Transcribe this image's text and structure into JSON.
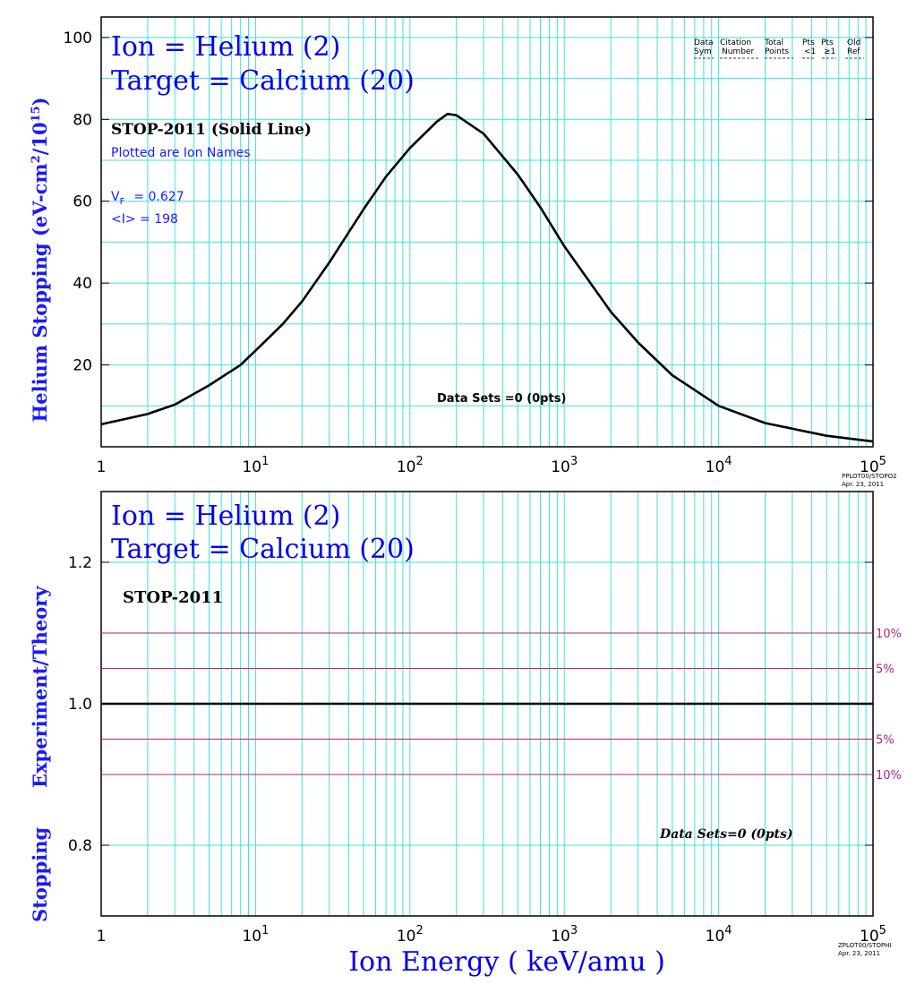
{
  "top_panel": {
    "title_ion": "Ion = Helium (2)",
    "title_target": "Target = Calcium (20)",
    "model_label": "STOP-2011 (Solid Line)",
    "subtitle": "Plotted are Ion Names",
    "vf_label": "V",
    "vf_sub": "F",
    "vf_value": "= 0.627",
    "i_label": "<I> = 198",
    "data_sets": "Data Sets =0 (0pts)",
    "ylabel_main": "Helium Stopping (eV-cm",
    "ylabel_sup1": "2",
    "ylabel_mid": "/10",
    "ylabel_sup2": "15",
    "ylabel_end": ")",
    "legend_header": {
      "row1": [
        "Data",
        "Citation",
        "Total",
        "Pts",
        "Pts",
        "Old"
      ],
      "row2": [
        "Sym",
        "Number",
        "Points",
        "<1",
        "≥1",
        "Ref"
      ]
    },
    "stamp1": "PPLOT00/STOPO2",
    "stamp2": "Apr. 23, 2011"
  },
  "bottom_panel": {
    "title_ion": "Ion = Helium (2)",
    "title_target": "Target = Calcium (20)",
    "model_label": "STOP-2011",
    "data_sets": "Data Sets=0 (0pts)",
    "ylabel_a": "Stopping",
    "ylabel_b": "Experiment/Theory",
    "band_labels": [
      "10%",
      "5%",
      "5%",
      "10%"
    ],
    "stamp1": "ZPLOT00/STOPHI",
    "stamp2": "Apr. 23, 2011"
  },
  "xlabel": "Ion  Energy  ( keV/amu )",
  "colors": {
    "title_blue": "#0000ee",
    "grid_cyan": "#40e0e0",
    "band_magenta": "#b0208a",
    "curve": "#000000"
  },
  "chart_data": [
    {
      "type": "line",
      "x_scale": "log",
      "xlim": [
        1,
        100000
      ],
      "ylim": [
        0,
        105
      ],
      "x_tick_labels": [
        "1",
        "10^1",
        "10^2",
        "10^3",
        "10^4",
        "10^5"
      ],
      "y_tick_labels": [
        "20",
        "40",
        "60",
        "80",
        "100"
      ],
      "grid": true,
      "series": [
        {
          "name": "STOP-2011",
          "x": [
            1,
            2,
            3,
            5,
            8,
            10,
            15,
            20,
            30,
            50,
            70,
            100,
            150,
            175,
            200,
            300,
            500,
            700,
            1000,
            2000,
            3000,
            5000,
            10000,
            20000,
            50000,
            100000
          ],
          "y": [
            5.5,
            8,
            10.3,
            15,
            20,
            23.5,
            30,
            35.5,
            45,
            58,
            66,
            73,
            79.5,
            81.3,
            81,
            76.5,
            66.5,
            58.5,
            49,
            33,
            25.5,
            17.5,
            10,
            5.8,
            2.7,
            1.3
          ]
        }
      ]
    },
    {
      "type": "line",
      "x_scale": "log",
      "xlim": [
        1,
        100000
      ],
      "ylim": [
        0.7,
        1.3
      ],
      "x_tick_labels": [
        "1",
        "10^1",
        "10^2",
        "10^3",
        "10^4",
        "10^5"
      ],
      "y_tick_labels": [
        "0.8",
        "1.0",
        "1.2"
      ],
      "grid": true,
      "series": [
        {
          "x": [
            1,
            100000
          ],
          "y": [
            1.0,
            1.0
          ]
        }
      ],
      "reference_lines": [
        1.1,
        1.05,
        0.95,
        0.9
      ]
    }
  ]
}
